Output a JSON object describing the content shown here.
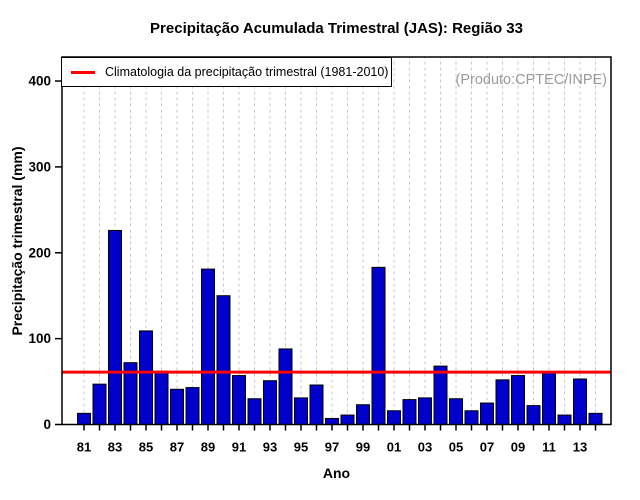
{
  "header": {
    "title": "Precipitação Acumulada Trimestral (JAS): Região 33"
  },
  "annotations": {
    "source": "(Produto:CPTEC/INPE)",
    "source_color": "#9b9b9b"
  },
  "legend": {
    "label": "Climatologia da precipitação trimestral (1981-2010)",
    "line_color": "#ff0000"
  },
  "chart_data": {
    "type": "bar",
    "title": "Precipitação Acumulada Trimestral (JAS): Região 33",
    "xlabel": "Ano",
    "ylabel": "Precipitação trimestral (mm)",
    "ylim": [
      0,
      428
    ],
    "yticks": [
      0,
      100,
      200,
      300,
      400
    ],
    "categories": [
      "81",
      "82",
      "83",
      "84",
      "85",
      "86",
      "87",
      "88",
      "89",
      "90",
      "91",
      "92",
      "93",
      "94",
      "95",
      "96",
      "97",
      "98",
      "99",
      "00",
      "01",
      "02",
      "03",
      "04",
      "05",
      "06",
      "07",
      "08",
      "09",
      "10",
      "11",
      "12",
      "13",
      "14"
    ],
    "values": [
      13,
      47,
      226,
      72,
      109,
      62,
      41,
      43,
      181,
      150,
      57,
      30,
      51,
      88,
      31,
      46,
      7,
      11,
      23,
      183,
      16,
      29,
      31,
      68,
      30,
      16,
      25,
      52,
      57,
      22,
      60,
      11,
      53,
      13
    ],
    "x_tick_label_every": 2,
    "climatology_line_value": 61,
    "bar_color": "#0000cd",
    "bar_border_color": "#000000",
    "line_color": "#ff0000",
    "grid": "vertical-dashed",
    "grid_color": "#c9c9c9",
    "legend_position": "topleft"
  }
}
